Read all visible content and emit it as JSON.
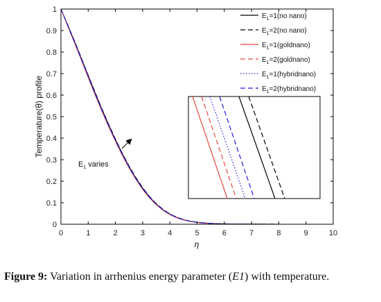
{
  "caption": {
    "label": "Figure 9:",
    "text_before": "Variation in arrhenius energy parameter (",
    "param": "E1",
    "text_after": ") with temperature."
  },
  "chart_data": {
    "type": "line",
    "title": "",
    "xlabel": "η",
    "ylabel": "Temperature(θ) profile",
    "xlim": [
      0,
      10
    ],
    "ylim": [
      0,
      1
    ],
    "xticks": [
      "0",
      "1",
      "2",
      "3",
      "4",
      "5",
      "6",
      "7",
      "8",
      "9",
      "10"
    ],
    "yticks": [
      "0",
      "0.1",
      "0.2",
      "0.3",
      "0.4",
      "0.5",
      "0.6",
      "0.7",
      "0.8",
      "0.9",
      "1"
    ],
    "grid": false,
    "legend_position": "top-right",
    "x": [
      0,
      0.25,
      0.5,
      0.75,
      1,
      1.25,
      1.5,
      1.75,
      2,
      2.25,
      2.5,
      2.75,
      3,
      3.25,
      3.5,
      3.75,
      4,
      4.25,
      4.5,
      4.75,
      5,
      5.25,
      5.5,
      5.75,
      6,
      6.5,
      7,
      7.5,
      8,
      9,
      10
    ],
    "series": [
      {
        "name": "E1=1(no nano)",
        "label_main": "E",
        "label_sub": "1",
        "label_rest": "=1(no nano)",
        "color": "#000000",
        "dash": "solid",
        "values": [
          1.0,
          0.925,
          0.848,
          0.77,
          0.69,
          0.612,
          0.535,
          0.462,
          0.393,
          0.328,
          0.268,
          0.214,
          0.167,
          0.127,
          0.094,
          0.067,
          0.047,
          0.032,
          0.021,
          0.014,
          0.009,
          0.006,
          0.004,
          0.003,
          0.002,
          0.001,
          0.0005,
          0.0002,
          0.0001,
          0.0,
          0.0
        ]
      },
      {
        "name": "E1=2(no nano)",
        "label_main": "E",
        "label_sub": "1",
        "label_rest": "=2(no nano)",
        "color": "#000000",
        "dash": "dashed",
        "values": [
          1.0,
          0.926,
          0.85,
          0.772,
          0.693,
          0.615,
          0.538,
          0.465,
          0.396,
          0.331,
          0.271,
          0.217,
          0.17,
          0.129,
          0.096,
          0.069,
          0.048,
          0.033,
          0.022,
          0.014,
          0.009,
          0.006,
          0.004,
          0.003,
          0.002,
          0.001,
          0.0005,
          0.0002,
          0.0001,
          0.0,
          0.0
        ]
      },
      {
        "name": "E1=1(goldnano)",
        "label_main": "E",
        "label_sub": "1",
        "label_rest": "=1(goldnano)",
        "color": "#e8473c",
        "dash": "solid",
        "values": [
          1.0,
          0.921,
          0.842,
          0.763,
          0.682,
          0.603,
          0.527,
          0.454,
          0.386,
          0.321,
          0.262,
          0.209,
          0.162,
          0.123,
          0.091,
          0.065,
          0.045,
          0.03,
          0.02,
          0.013,
          0.008,
          0.005,
          0.003,
          0.002,
          0.001,
          0.0008,
          0.0004,
          0.0002,
          0.0001,
          0.0,
          0.0
        ]
      },
      {
        "name": "E1=2(goldnano)",
        "label_main": "E",
        "label_sub": "1",
        "label_rest": "=2(goldnano)",
        "color": "#e8473c",
        "dash": "dashed",
        "values": [
          1.0,
          0.922,
          0.844,
          0.765,
          0.684,
          0.605,
          0.529,
          0.456,
          0.388,
          0.323,
          0.264,
          0.211,
          0.164,
          0.124,
          0.092,
          0.066,
          0.046,
          0.031,
          0.02,
          0.013,
          0.008,
          0.005,
          0.003,
          0.002,
          0.001,
          0.0008,
          0.0004,
          0.0002,
          0.0001,
          0.0,
          0.0
        ]
      },
      {
        "name": "E1=1(hybridnano)",
        "label_main": "E",
        "label_sub": "1",
        "label_rest": "=1(hybridnano)",
        "color": "#1d1de0",
        "dash": "dotted",
        "values": [
          1.0,
          0.923,
          0.845,
          0.766,
          0.686,
          0.607,
          0.531,
          0.458,
          0.389,
          0.325,
          0.265,
          0.212,
          0.165,
          0.125,
          0.093,
          0.066,
          0.046,
          0.031,
          0.021,
          0.013,
          0.009,
          0.006,
          0.004,
          0.002,
          0.001,
          0.0008,
          0.0004,
          0.0002,
          0.0001,
          0.0,
          0.0
        ]
      },
      {
        "name": "E1=2(hybridnano)",
        "label_main": "E",
        "label_sub": "1",
        "label_rest": "=2(hybridnano)",
        "color": "#1d1de0",
        "dash": "dashed",
        "values": [
          1.0,
          0.924,
          0.846,
          0.768,
          0.688,
          0.609,
          0.533,
          0.46,
          0.391,
          0.327,
          0.267,
          0.213,
          0.166,
          0.126,
          0.094,
          0.067,
          0.047,
          0.032,
          0.021,
          0.014,
          0.009,
          0.006,
          0.004,
          0.002,
          0.001,
          0.0008,
          0.0004,
          0.0002,
          0.0001,
          0.0,
          0.0
        ]
      }
    ],
    "annotations": [
      {
        "text_main": "E",
        "text_sub": "1",
        "text_rest": " varies",
        "x": 0.65,
        "y": 0.305,
        "arrow_from": [
          2.3,
          0.365
        ],
        "arrow_to": [
          2.65,
          0.42
        ]
      }
    ],
    "inset": {
      "xlim": [
        0,
        1
      ],
      "ylim": [
        0,
        1
      ],
      "shows": "zoomed view of curves, lines in legend order"
    }
  }
}
